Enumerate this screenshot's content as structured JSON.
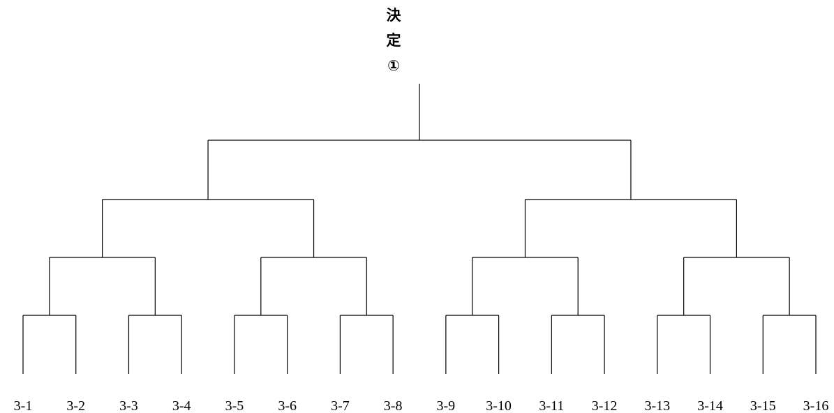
{
  "final": {
    "label_line1": "決",
    "label_line2": "定",
    "label_line3": "①"
  },
  "entries": [
    "3-1",
    "3-2",
    "3-3",
    "3-4",
    "3-5",
    "3-6",
    "3-7",
    "3-8",
    "3-9",
    "3-10",
    "3-11",
    "3-12",
    "3-13",
    "3-14",
    "3-15",
    "3-16"
  ],
  "line_color": "#000000"
}
